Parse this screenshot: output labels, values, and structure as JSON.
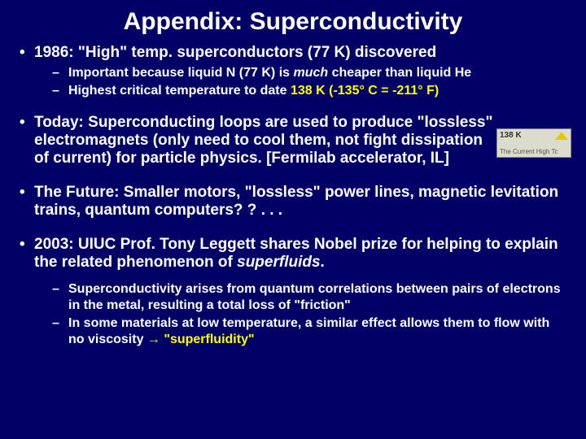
{
  "title": "Appendix: Superconductivity",
  "b1": {
    "lead": "1986: \"High\" temp. superconductors (77 K) discovered",
    "sub1a": "Important because liquid N (77 K) is ",
    "sub1b": "much",
    "sub1c": " cheaper than liquid He",
    "sub2a": "Highest critical temperature to date ",
    "sub2b": "138 K (-135° C = -211° F)"
  },
  "b2": {
    "text": "Today: Superconducting loops are used to produce \"lossless\" electromagnets (only need to cool them, not fight dissipation of current) for particle physics. [Fermilab accelerator, IL]"
  },
  "b3": {
    "text": "The Future: Smaller motors, \"lossless\" power lines, magnetic levitation trains, quantum computers? ? . . ."
  },
  "b4": {
    "a": "2003: UIUC Prof. Tony Leggett shares Nobel prize for helping to explain the related phenomenon of ",
    "b": "superfluids",
    "c": ".",
    "sub1": "Superconductivity arises from quantum correlations between pairs of electrons in the metal, resulting a total loss of \"friction\"",
    "sub2a": "In some materials at low temperature, a similar effect allows them to flow with no viscosity ",
    "sub2b": "→ \"superfluidity\""
  },
  "badge": {
    "temp": "138 K",
    "label": "The Current High Tc"
  },
  "colors": {
    "bg": "#000066",
    "text": "#ffffff",
    "highlight": "#ffff00"
  }
}
